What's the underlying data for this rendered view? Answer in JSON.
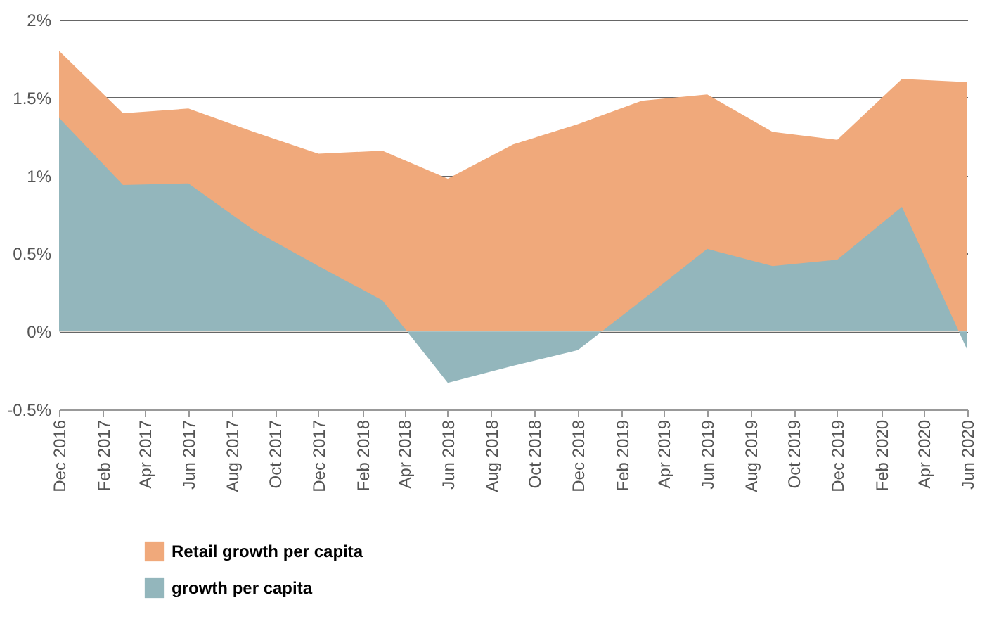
{
  "chart_data": {
    "type": "area",
    "x": [
      "2016-12",
      "2017-03",
      "2017-06",
      "2017-09",
      "2017-12",
      "2018-03",
      "2018-06",
      "2018-09",
      "2018-12",
      "2019-03",
      "2019-06",
      "2019-09",
      "2019-12",
      "2020-03",
      "2020-06"
    ],
    "series": [
      {
        "name": "Retail growth per capita",
        "color": "#f0a97b",
        "values": [
          1.8,
          1.4,
          1.43,
          1.28,
          1.14,
          1.16,
          0.98,
          1.2,
          1.33,
          1.48,
          1.52,
          1.28,
          1.23,
          1.62,
          1.6
        ]
      },
      {
        "name": "growth per capita",
        "color": "#93b6bc",
        "values": [
          1.37,
          0.94,
          0.95,
          0.65,
          0.42,
          0.2,
          -0.33,
          -0.22,
          -0.12,
          0.2,
          0.53,
          0.42,
          0.46,
          0.8,
          -0.12
        ]
      }
    ],
    "xlim": [
      "2016-12",
      "2020-06"
    ],
    "xticks": [
      {
        "value": "2016-12",
        "label": "Dec 2016"
      },
      {
        "value": "2017-02",
        "label": "Feb 2017"
      },
      {
        "value": "2017-04",
        "label": "Apr 2017"
      },
      {
        "value": "2017-06",
        "label": "Jun 2017"
      },
      {
        "value": "2017-08",
        "label": "Aug 2017"
      },
      {
        "value": "2017-10",
        "label": "Oct 2017"
      },
      {
        "value": "2017-12",
        "label": "Dec 2017"
      },
      {
        "value": "2018-02",
        "label": "Feb 2018"
      },
      {
        "value": "2018-04",
        "label": "Apr 2018"
      },
      {
        "value": "2018-06",
        "label": "Jun 2018"
      },
      {
        "value": "2018-08",
        "label": "Aug 2018"
      },
      {
        "value": "2018-10",
        "label": "Oct 2018"
      },
      {
        "value": "2018-12",
        "label": "Dec 2018"
      },
      {
        "value": "2019-02",
        "label": "Feb 2019"
      },
      {
        "value": "2019-04",
        "label": "Apr 2019"
      },
      {
        "value": "2019-06",
        "label": "Jun 2019"
      },
      {
        "value": "2019-08",
        "label": "Aug 2019"
      },
      {
        "value": "2019-10",
        "label": "Oct 2019"
      },
      {
        "value": "2019-12",
        "label": "Dec 2019"
      },
      {
        "value": "2020-02",
        "label": "Feb 2020"
      },
      {
        "value": "2020-04",
        "label": "Apr 2020"
      },
      {
        "value": "2020-06",
        "label": "Jun 2020"
      }
    ],
    "ylim": [
      -0.5,
      2
    ],
    "yticks": [
      {
        "value": -0.5,
        "label": "-0.5%"
      },
      {
        "value": 0,
        "label": "0%"
      },
      {
        "value": 0.5,
        "label": "0.5%"
      },
      {
        "value": 1,
        "label": "1%"
      },
      {
        "value": 1.5,
        "label": "1.5%"
      },
      {
        "value": 2,
        "label": "2%"
      }
    ],
    "grid": "y",
    "legend": "bottom"
  }
}
